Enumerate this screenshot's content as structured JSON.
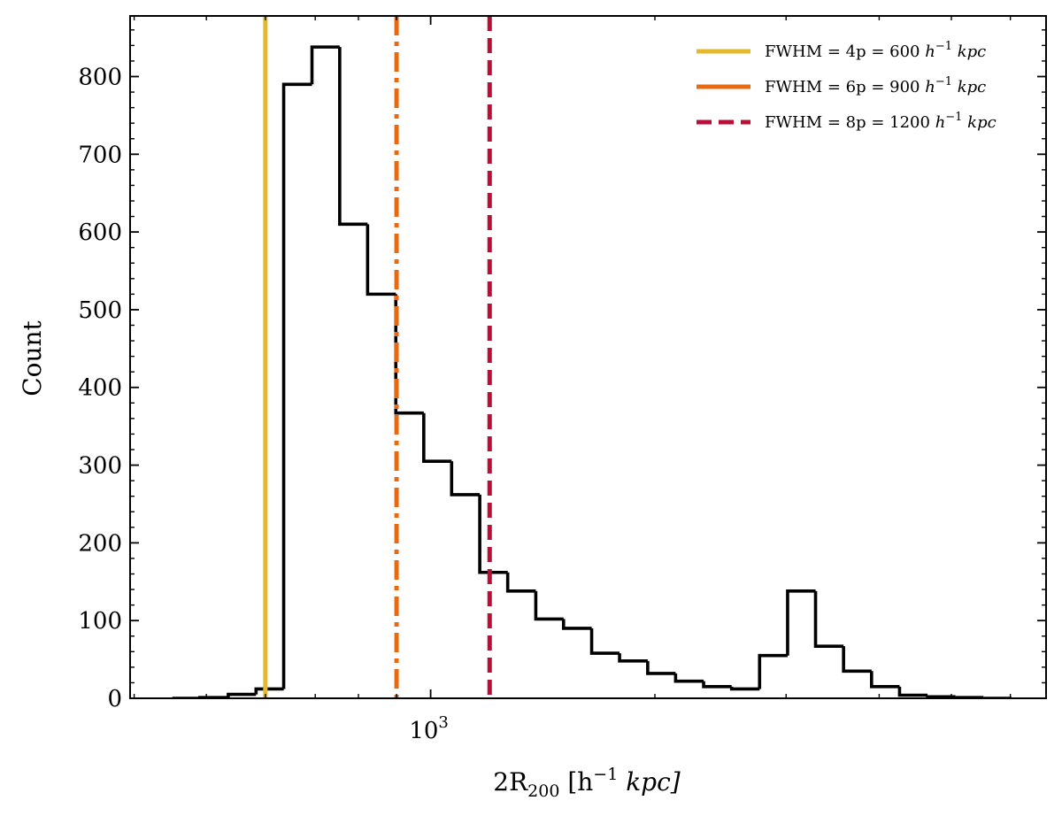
{
  "chart_data": {
    "type": "histogram",
    "xscale": "log",
    "xlim": [
      395,
      6700
    ],
    "ylim": [
      0,
      878
    ],
    "xlabel": "2R200 [h−1 kpc]",
    "ylabel": "Count",
    "ylabel_text": "Count",
    "xlabel_parts": {
      "base": "2R",
      "sub": "200",
      "mid": " [h",
      "sup": "−1",
      "end": " kpc]"
    },
    "y_ticks": [
      0,
      100,
      200,
      300,
      400,
      500,
      600,
      700,
      800
    ],
    "x_major_ticks": [
      {
        "value": 1000,
        "base": "10",
        "exp": "3"
      }
    ],
    "x_minor_ticks": [
      400,
      500,
      600,
      700,
      800,
      900,
      2000,
      3000,
      4000,
      5000,
      6000
    ],
    "y_minor_step": 20,
    "bins": {
      "edges": [
        450,
        490,
        535,
        583,
        635,
        693,
        755,
        823,
        898,
        979,
        1067,
        1164,
        1269,
        1384,
        1508,
        1645,
        1793,
        1956,
        2132,
        2325,
        2535,
        2764,
        3014,
        3286,
        3583,
        3907,
        4260,
        4645,
        5064,
        5522,
        6021
      ],
      "counts": [
        0,
        1,
        5,
        12,
        790,
        838,
        610,
        520,
        367,
        305,
        262,
        162,
        138,
        102,
        90,
        58,
        48,
        32,
        22,
        15,
        12,
        55,
        138,
        67,
        35,
        15,
        4,
        2,
        1,
        0
      ]
    },
    "vlines": [
      {
        "name": "FWHM = 4p = 600 h−1 kpc",
        "x": 600,
        "color": "#e6b92a",
        "style": "solid"
      },
      {
        "name": "FWHM = 6p = 900 h−1 kpc",
        "x": 900,
        "color": "#e8690f",
        "style": "dashdot"
      },
      {
        "name": "FWHM = 8p = 1200 h−1 kpc",
        "x": 1200,
        "color": "#bb0d35",
        "style": "dashed"
      }
    ],
    "legend": {
      "position": "top-right",
      "entries": [
        {
          "prefix": "FWHM = 4p = 600",
          "sup": "−1",
          "suffix": " kpc"
        },
        {
          "prefix": "FWHM = 6p = 900",
          "sup": "−1",
          "suffix": " kpc"
        },
        {
          "prefix": "FWHM = 8p = 1200",
          "sup": "−1",
          "suffix": " kpc"
        }
      ]
    },
    "grid": false
  }
}
